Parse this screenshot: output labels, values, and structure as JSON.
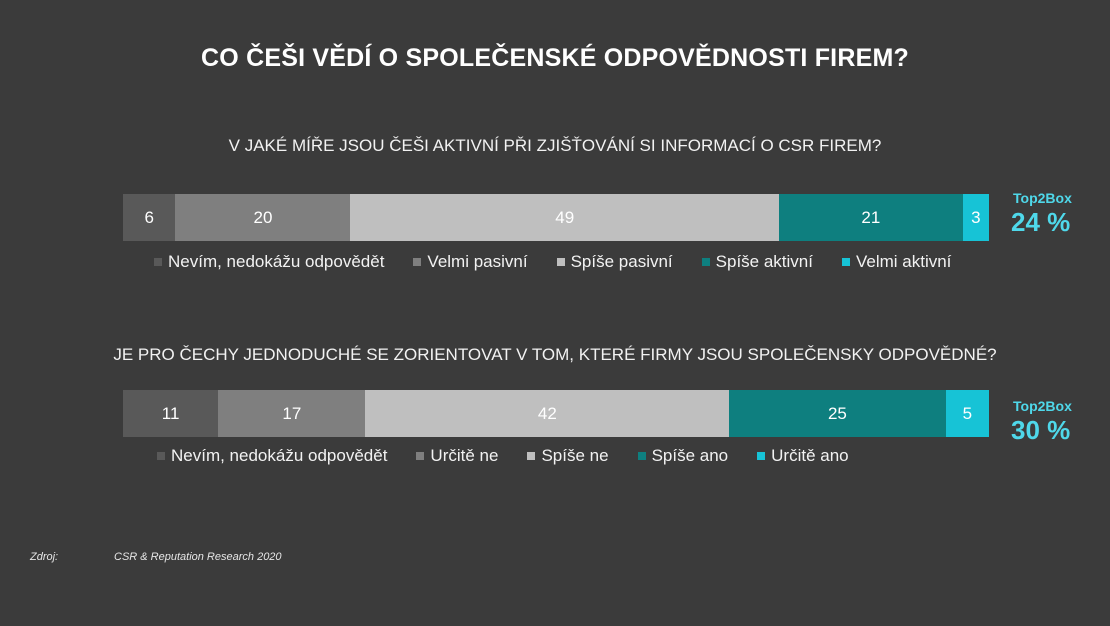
{
  "title": "CO ČEŠI VĚDÍ O SPOLEČENSKÉ ODPOVĚDNOSTI FIREM?",
  "colors": {
    "background": "#3b3b3b",
    "dark_grey": "#595959",
    "mid_grey": "#7f7f7f",
    "light_grey": "#bfbfbf",
    "teal": "#0e7f7f",
    "cyan": "#17c3d6",
    "accent_text": "#4fd8ea"
  },
  "source": {
    "label": "Zdroj:",
    "text": "CSR & Reputation Research 2020"
  },
  "chart_data": [
    {
      "type": "bar",
      "orientation": "horizontal-stacked-100",
      "question": "V JAKÉ MÍŘE JSOU ČEŠI AKTIVNÍ PŘI ZJIŠŤOVÁNÍ SI INFORMACÍ O CSR FIREM?",
      "series": [
        {
          "name": "Nevím, nedokážu odpovědět",
          "value": 6,
          "color": "#595959"
        },
        {
          "name": "Velmi pasivní",
          "value": 20,
          "color": "#7f7f7f"
        },
        {
          "name": "Spíše pasivní",
          "value": 49,
          "color": "#bfbfbf"
        },
        {
          "name": "Spíše aktivní",
          "value": 21,
          "color": "#0e7f7f"
        },
        {
          "name": "Velmi aktivní",
          "value": 3,
          "color": "#17c3d6"
        }
      ],
      "top2box": {
        "label": "Top2Box",
        "value": "24 %"
      },
      "legend_position": "bottom"
    },
    {
      "type": "bar",
      "orientation": "horizontal-stacked-100",
      "question": "JE PRO ČECHY JEDNODUCHÉ SE ZORIENTOVAT V TOM, KTERÉ FIRMY JSOU SPOLEČENSKY ODPOVĚDNÉ?",
      "series": [
        {
          "name": "Nevím, nedokážu odpovědět",
          "value": 11,
          "color": "#595959"
        },
        {
          "name": "Určitě ne",
          "value": 17,
          "color": "#7f7f7f"
        },
        {
          "name": "Spíše ne",
          "value": 42,
          "color": "#bfbfbf"
        },
        {
          "name": "Spíše ano",
          "value": 25,
          "color": "#0e7f7f"
        },
        {
          "name": "Určitě ano",
          "value": 5,
          "color": "#17c3d6"
        }
      ],
      "top2box": {
        "label": "Top2Box",
        "value": "30 %"
      },
      "legend_position": "bottom"
    }
  ]
}
